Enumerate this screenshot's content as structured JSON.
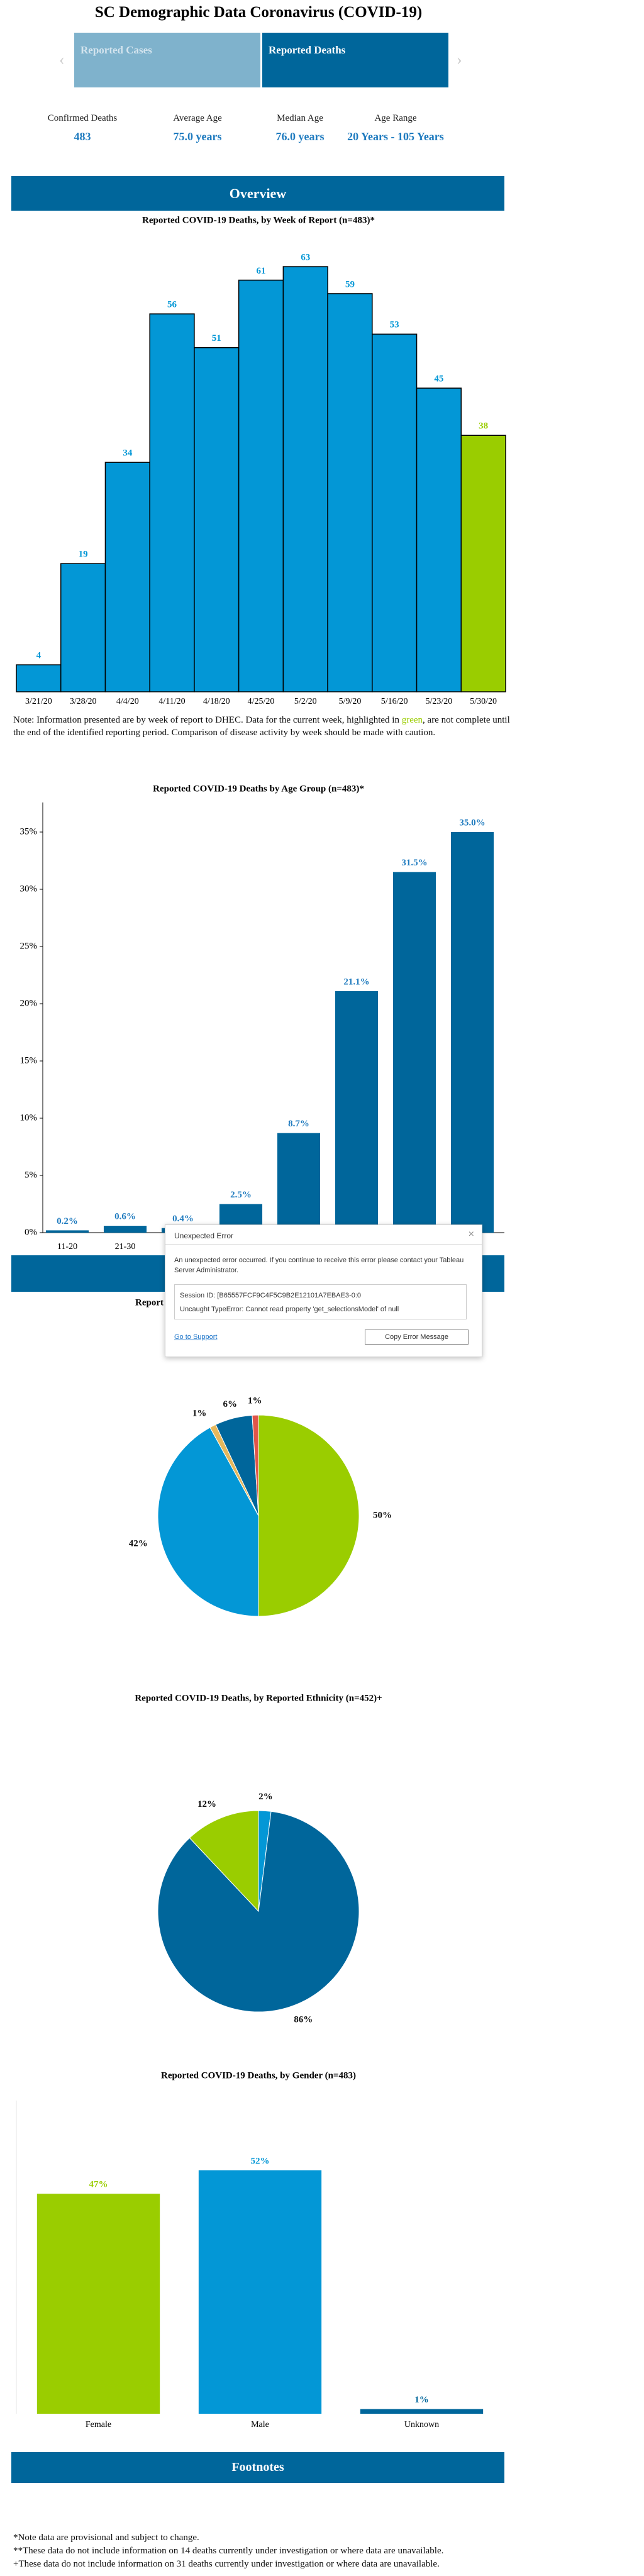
{
  "header": {
    "title": "SC Demographic Data Coronavirus (COVID-19)"
  },
  "tabs": [
    "Reported Cases",
    "Reported Deaths"
  ],
  "stats": [
    {
      "label": "Confirmed Deaths",
      "value": "483"
    },
    {
      "label": "Average Age",
      "value": "75.0 years"
    },
    {
      "label": "Median Age",
      "value": "76.0 years"
    },
    {
      "label": "Age Range",
      "value": "20 Years - 105 Years"
    }
  ],
  "sections": [
    "Overview",
    "Footnotes"
  ],
  "note": {
    "parts": [
      "Note: Information presented are by week of report to DHEC. Data for the current week, highlighted in ",
      "green",
      ", are not complete until the end of the identified reporting period. Comparison of disease activity by week should be made with caution."
    ]
  },
  "chart_data": [
    {
      "type": "bar",
      "title": "Reported COVID-19 Deaths, by Week of Report (n=483)*",
      "categories": [
        "3/21/20",
        "3/28/20",
        "4/4/20",
        "4/11/20",
        "4/18/20",
        "4/25/20",
        "5/2/20",
        "5/9/20",
        "5/16/20",
        "5/23/20",
        "5/30/20"
      ],
      "values": [
        4,
        19,
        34,
        56,
        51,
        61,
        63,
        59,
        53,
        45,
        38
      ],
      "colors": [
        "#0397d6",
        "#0397d6",
        "#0397d6",
        "#0397d6",
        "#0397d6",
        "#0397d6",
        "#0397d6",
        "#0397d6",
        "#0397d6",
        "#0397d6",
        "#9acd00"
      ]
    },
    {
      "type": "bar",
      "title": "Reported COVID-19 Deaths by Age Group (n=483)*",
      "categories": [
        "11-20",
        "21-30",
        null,
        null,
        null,
        null,
        null,
        null
      ],
      "values": [
        0.2,
        0.6,
        0.4,
        2.5,
        8.7,
        21.1,
        31.5,
        35.0
      ],
      "value_labels": [
        "0.2%",
        "0.6%",
        "0.4%",
        "2.5%",
        "8.7%",
        "21.1%",
        "31.5%",
        "35.0%"
      ],
      "color": "#00669b",
      "label_color": "#1f7bbf",
      "ylim": [
        0,
        35
      ],
      "yticks": [
        {
          "value": 0,
          "label": "0%"
        },
        {
          "value": 5,
          "label": "5%"
        },
        {
          "value": 10,
          "label": "10%"
        },
        {
          "value": 15,
          "label": "15%"
        },
        {
          "value": 20,
          "label": "20%"
        },
        {
          "value": 25,
          "label": "25%"
        },
        {
          "value": 30,
          "label": "30%"
        },
        {
          "value": 35,
          "label": "35%"
        }
      ]
    },
    {
      "type": "pie",
      "title": "Report",
      "values": [
        50,
        42,
        1,
        6,
        1
      ],
      "value_labels": [
        "50%",
        "42%",
        "1%",
        "6%",
        "1%"
      ],
      "colors": [
        "#9acd00",
        "#0397d6",
        "#e6b85c",
        "#00669b",
        "#e0554a"
      ]
    },
    {
      "type": "pie",
      "title": "Reported COVID-19 Deaths, by Reported Ethnicity (n=452)+",
      "values": [
        2,
        86,
        12
      ],
      "value_labels": [
        "2%",
        "86%",
        "12%"
      ],
      "colors": [
        "#0397d6",
        "#00669b",
        "#9acd00"
      ]
    },
    {
      "type": "bar",
      "title": "Reported COVID-19 Deaths, by Gender (n=483)",
      "categories": [
        "Female",
        "Male",
        "Unknown"
      ],
      "values": [
        47,
        52,
        1
      ],
      "value_labels": [
        "47%",
        "52%",
        "1%"
      ],
      "colors": [
        "#9acd00",
        "#0397d6",
        "#00669b"
      ]
    }
  ],
  "error_dialog": {
    "title": "Unexpected Error",
    "message": "An unexpected error occurred. If you continue to receive this error please contact your Tableau Server Administrator.",
    "details": [
      "Session ID: [B65557FCF9C4F5C9B2E12101A7EBAE3-0:0",
      "Uncaught TypeError: Cannot read property 'get_selectionsModel' of null"
    ],
    "link": "Go to Support",
    "button": "Copy Error Message"
  },
  "footnotes": [
    "*Note data are provisional and subject to change.",
    "**These data do not include information on 14 deaths currently under investigation or where data are unavailable.",
    "+These data do not include information on 31 deaths currently under investigation or where data are unavailable."
  ]
}
